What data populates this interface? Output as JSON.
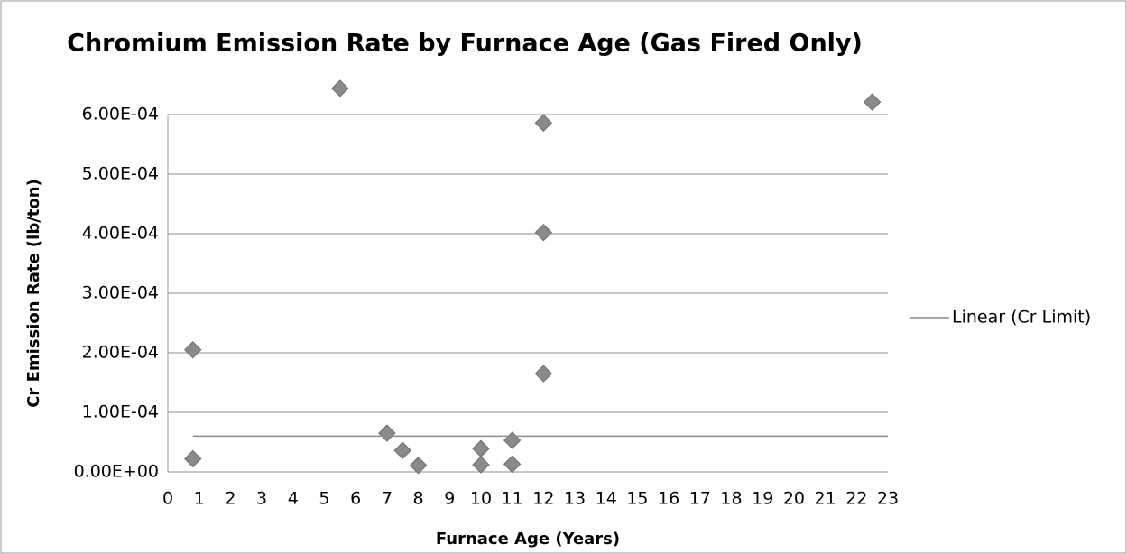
{
  "chart_data": {
    "type": "scatter",
    "title": "Chromium Emission Rate by Furnace Age (Gas Fired Only)",
    "xlabel": "Furnace Age (Years)",
    "ylabel": "Cr Emission Rate (lb/ton)",
    "xlim": [
      0,
      23
    ],
    "ylim": [
      0,
      0.0006
    ],
    "xticks": [
      0,
      1,
      2,
      3,
      4,
      5,
      6,
      7,
      8,
      9,
      10,
      11,
      12,
      13,
      14,
      15,
      16,
      17,
      18,
      19,
      20,
      21,
      22,
      23
    ],
    "yticks": [
      {
        "value": 0,
        "label": "0.00E+00"
      },
      {
        "value": 0.0001,
        "label": "1.00E-04"
      },
      {
        "value": 0.0002,
        "label": "2.00E-04"
      },
      {
        "value": 0.0003,
        "label": "3.00E-04"
      },
      {
        "value": 0.0004,
        "label": "4.00E-04"
      },
      {
        "value": 0.0005,
        "label": "5.00E-04"
      },
      {
        "value": 0.0006,
        "label": "6.00E-04"
      }
    ],
    "grid": true,
    "legend": "right",
    "series": [
      {
        "style": "marker",
        "color": "#8a8a8a",
        "x": [
          0.8,
          0.8,
          5.5,
          7,
          7.5,
          8,
          10,
          10,
          11,
          11,
          12,
          12,
          12,
          22.5
        ],
        "values": [
          0.000205,
          2.2e-05,
          0.000644,
          6.5e-05,
          3.6e-05,
          1.1e-05,
          3.9e-05,
          1.2e-05,
          5.3e-05,
          1.3e-05,
          0.000586,
          0.000402,
          0.000165,
          0.000621
        ]
      },
      {
        "name": "Linear (Cr Limit)",
        "style": "line",
        "color": "#8c8c8c",
        "x": [
          0.8,
          23
        ],
        "values": [
          6e-05,
          6e-05
        ]
      }
    ]
  }
}
